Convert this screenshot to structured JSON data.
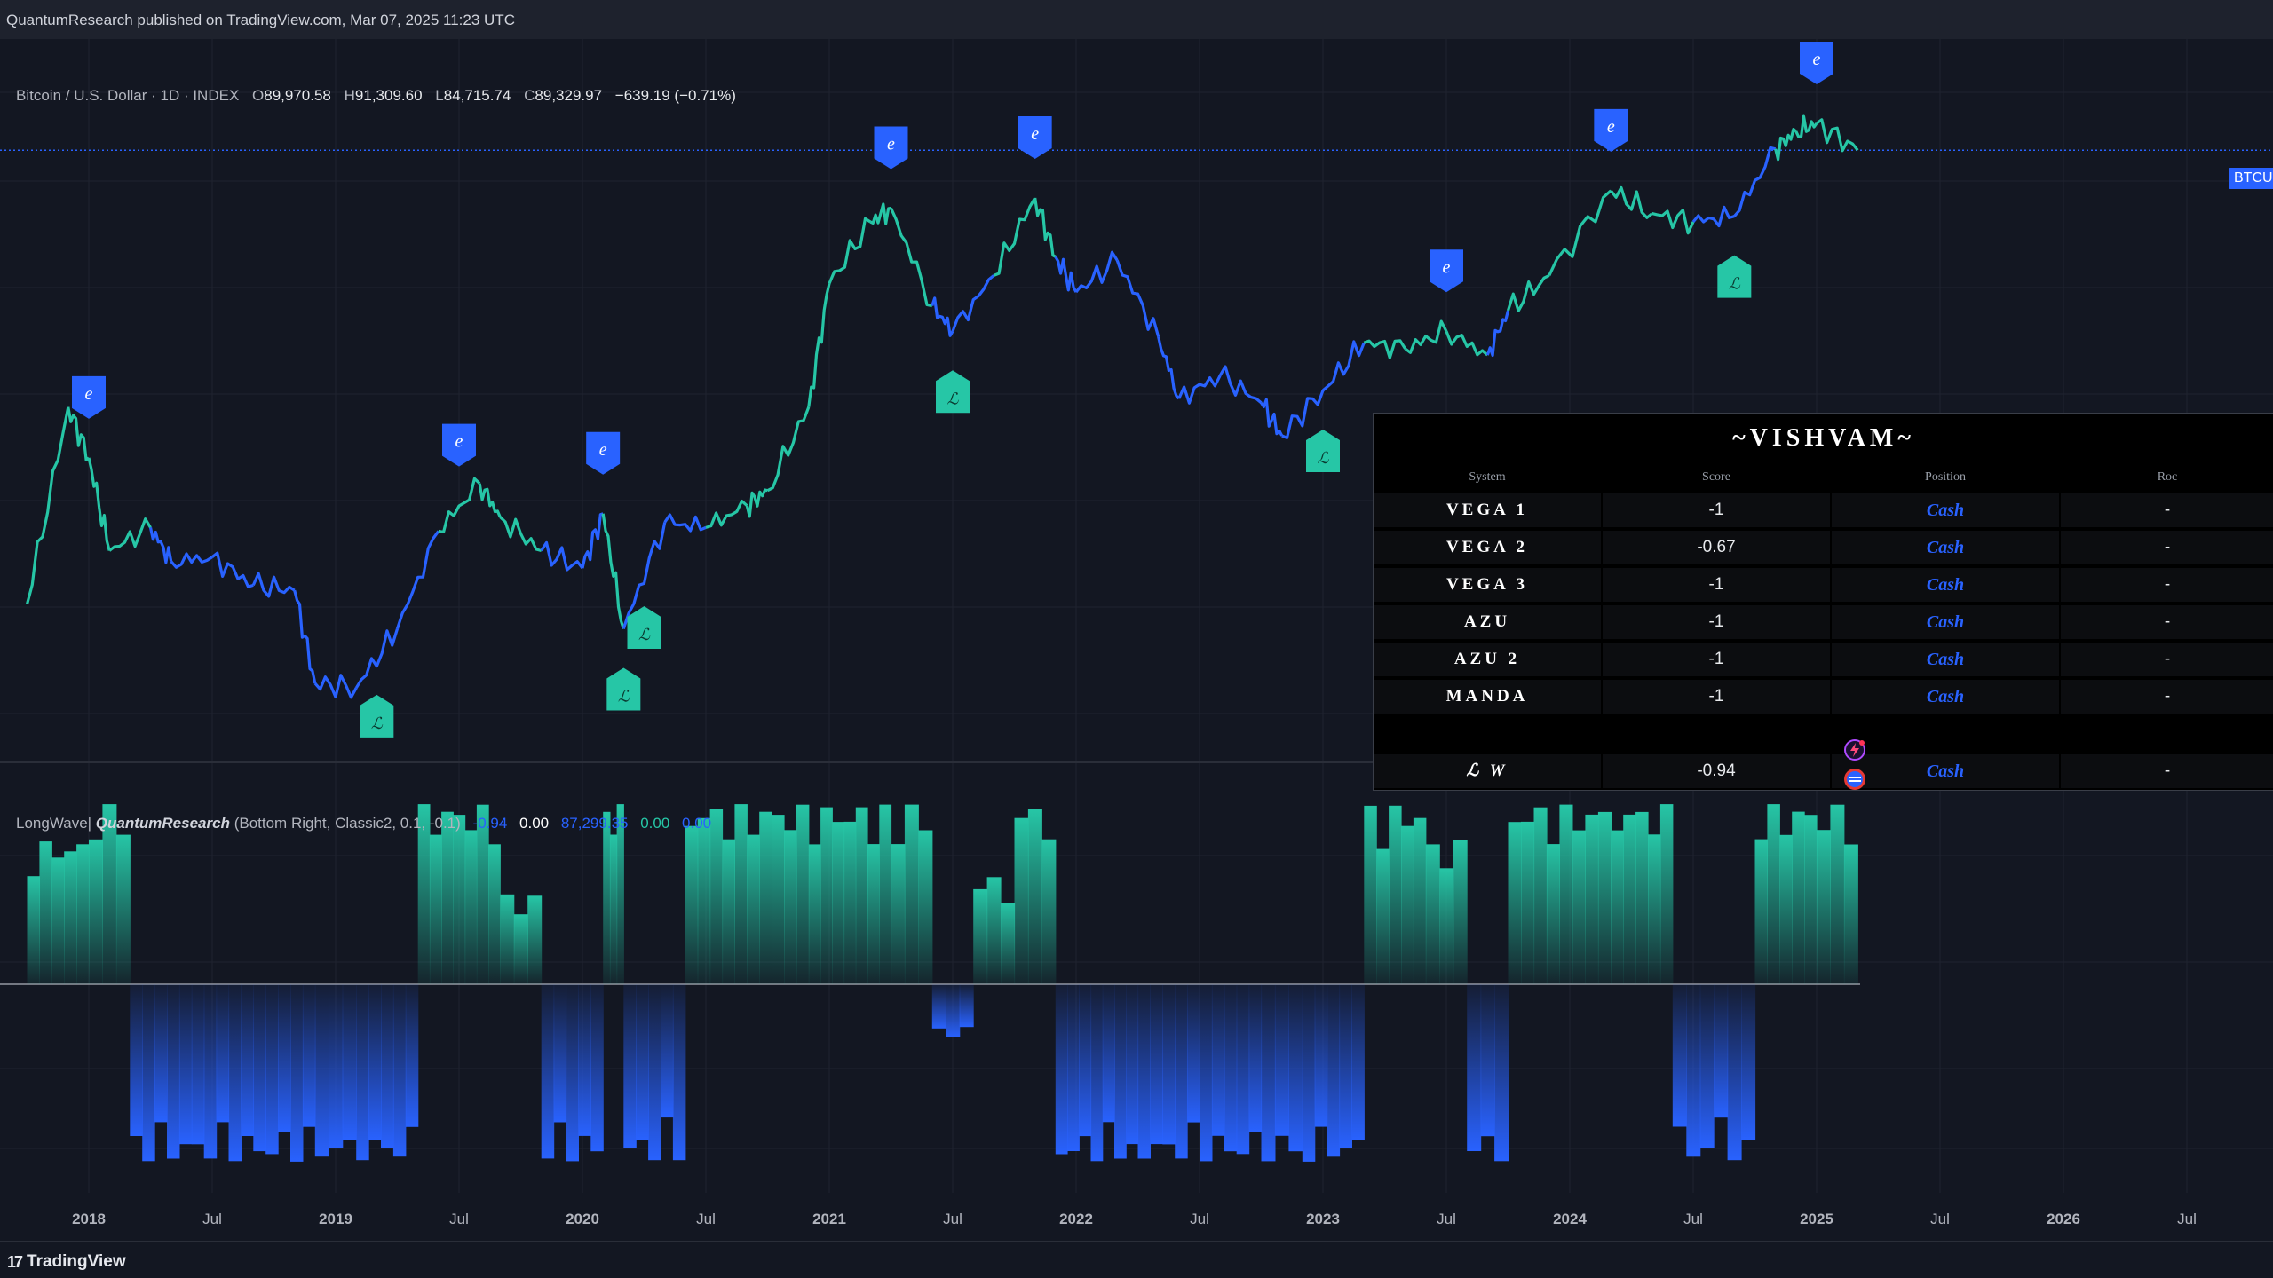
{
  "header": {
    "published_text": "QuantumResearch published on TradingView.com, Mar 07, 2025 11:23 UTC"
  },
  "main_legend": {
    "symbol": "Bitcoin / U.S. Dollar · 1D · INDEX",
    "open_label": "O",
    "open": "89,970.58",
    "high_label": "H",
    "high": "91,309.60",
    "low_label": "L",
    "low": "84,715.74",
    "close_label": "C",
    "close": "89,329.97",
    "change": "−639.19 (−0.71%)"
  },
  "price_tag": "BTCU",
  "indicator_legend": {
    "name": "LongWave|",
    "author": "QuantumResearch",
    "params": "(Bottom Right, Classic2, 0.1, -0.1)",
    "v1": "-0.94",
    "v2": "0.00",
    "v3": "87,299.35",
    "v4": "0.00",
    "v5": "0.00",
    "colors": {
      "v1": "#2962ff",
      "v2": "#ffffff",
      "v3": "#2962ff",
      "v4": "#26c6a6",
      "v5": "#2962ff"
    }
  },
  "table": {
    "title": "~VISHVAM~",
    "headers": [
      "System",
      "Score",
      "Position",
      "Roc"
    ],
    "rows": [
      {
        "system": "VEGA 1",
        "score": "-1",
        "position": "Cash",
        "roc": "-"
      },
      {
        "system": "VEGA 2",
        "score": "-0.67",
        "position": "Cash",
        "roc": "-"
      },
      {
        "system": "VEGA 3",
        "score": "-1",
        "position": "Cash",
        "roc": "-"
      },
      {
        "system": "AZU",
        "score": "-1",
        "position": "Cash",
        "roc": "-"
      },
      {
        "system": "AZU 2",
        "score": "-1",
        "position": "Cash",
        "roc": "-"
      },
      {
        "system": "MANDA",
        "score": "-1",
        "position": "Cash",
        "roc": "-"
      }
    ],
    "summary": {
      "system": "ℒ W",
      "score": "-0.94",
      "position": "Cash",
      "roc": "-"
    }
  },
  "footer": {
    "brand": "TradingView",
    "logo": "17"
  },
  "colors": {
    "long": "#26c6a6",
    "short": "#2962ff",
    "background": "#131722"
  },
  "chart_data": [
    {
      "type": "line",
      "title": "Bitcoin / U.S. Dollar · 1D · INDEX",
      "x_ticks": [
        "2018",
        "Jul",
        "2019",
        "Jul",
        "2020",
        "Jul",
        "2021",
        "Jul",
        "2022",
        "Jul",
        "2023",
        "Jul",
        "2024",
        "Jul",
        "2025",
        "Jul",
        "2026",
        "Jul"
      ],
      "x": [
        "2017-10",
        "2017-12",
        "2018-01",
        "2018-02",
        "2018-04",
        "2018-05",
        "2018-07",
        "2018-09",
        "2018-11",
        "2018-12",
        "2019-02",
        "2019-04",
        "2019-06",
        "2019-08",
        "2019-09",
        "2019-11",
        "2020-01",
        "2020-02",
        "2020-03",
        "2020-05",
        "2020-07",
        "2020-09",
        "2020-10",
        "2020-12",
        "2021-01",
        "2021-03",
        "2021-04",
        "2021-06",
        "2021-07",
        "2021-09",
        "2021-11",
        "2021-12",
        "2022-01",
        "2022-03",
        "2022-05",
        "2022-06",
        "2022-08",
        "2022-10",
        "2022-11",
        "2023-01",
        "2023-03",
        "2023-05",
        "2023-07",
        "2023-09",
        "2023-10",
        "2023-12",
        "2024-03",
        "2024-05",
        "2024-07",
        "2024-09",
        "2024-11",
        "2024-12",
        "2025-01",
        "2025-03"
      ],
      "y": [
        5800,
        19000,
        14000,
        8000,
        9200,
        7500,
        7700,
        6500,
        6300,
        3600,
        3500,
        5000,
        9000,
        12000,
        9800,
        8000,
        7200,
        10000,
        5000,
        9500,
        9200,
        10500,
        11500,
        19000,
        40000,
        58000,
        63000,
        35000,
        30000,
        42000,
        67000,
        47000,
        38000,
        46000,
        29000,
        20000,
        23000,
        19500,
        16000,
        21000,
        28000,
        27000,
        30000,
        26000,
        34000,
        42000,
        70000,
        61000,
        58000,
        60000,
        90000,
        100000,
        105000,
        89330
      ],
      "marker_e_dates": [
        "2018-01",
        "2019-07",
        "2020-02",
        "2021-04",
        "2021-11",
        "2023-07",
        "2024-03",
        "2025-01"
      ],
      "marker_l_dates": [
        "2019-03",
        "2020-03",
        "2020-04",
        "2021-07",
        "2023-01",
        "2024-09"
      ],
      "series": [
        {
          "name": "Long",
          "color": "#26c6a6"
        },
        {
          "name": "Short",
          "color": "#2962ff"
        }
      ],
      "grid": true
    },
    {
      "type": "area",
      "title": "LongWave| QuantumResearch",
      "ylim": [
        -1,
        1
      ],
      "x": [
        "2017-10",
        "2018-01",
        "2018-03",
        "2018-06",
        "2018-09",
        "2018-12",
        "2019-02",
        "2019-05",
        "2019-09",
        "2019-11",
        "2020-02",
        "2020-03",
        "2020-06",
        "2020-09",
        "2020-12",
        "2021-04",
        "2021-06",
        "2021-08",
        "2021-10",
        "2021-12",
        "2022-04",
        "2022-10",
        "2022-12",
        "2023-03",
        "2023-06",
        "2023-08",
        "2023-10",
        "2024-03",
        "2024-06",
        "2024-08",
        "2024-10",
        "2025-01",
        "2025-03"
      ],
      "values": [
        0.8,
        1,
        -1,
        -1,
        -1,
        -1,
        -1,
        1,
        0.5,
        -1,
        1,
        -1,
        1,
        1,
        1,
        1,
        -0.3,
        0.6,
        1,
        -1,
        -1,
        -1,
        -1,
        1,
        0.8,
        -1,
        1,
        1,
        -1,
        -1,
        1,
        1,
        -0.94
      ],
      "grid": true
    }
  ]
}
